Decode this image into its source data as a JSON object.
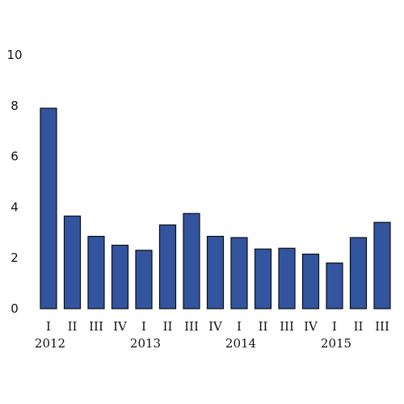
{
  "chart_data": {
    "type": "bar",
    "categories": [
      "I",
      "II",
      "III",
      "IV",
      "I",
      "II",
      "III",
      "IV",
      "I",
      "II",
      "III",
      "IV",
      "I",
      "II",
      "III"
    ],
    "years": [
      "2012",
      "2013",
      "2014",
      "2015"
    ],
    "year_start_index": [
      0,
      4,
      8,
      12
    ],
    "values": [
      7.9,
      3.65,
      2.85,
      2.5,
      2.3,
      3.3,
      3.75,
      2.85,
      2.8,
      2.35,
      2.38,
      2.15,
      1.8,
      2.8,
      3.4
    ],
    "yticks": [
      0,
      2,
      4,
      6,
      8,
      10
    ],
    "ylim": [
      0,
      10
    ],
    "title": "",
    "xlabel": "",
    "ylabel": "",
    "grid": false,
    "bar_color": "#3355a0",
    "bar_stroke": "#0d0d0d"
  }
}
